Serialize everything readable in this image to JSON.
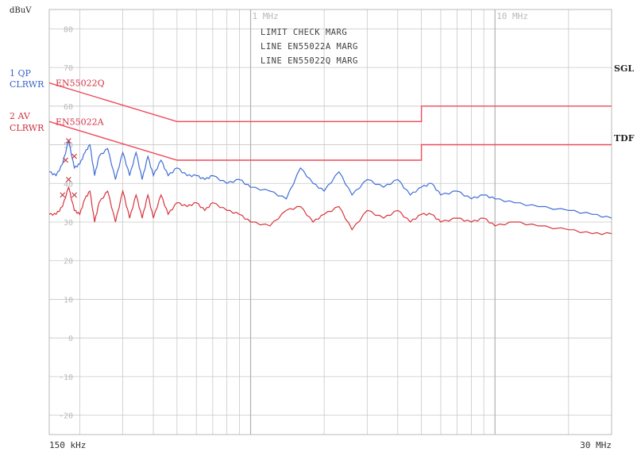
{
  "y_unit": "dBuV",
  "left_labels": {
    "trace1_name": "1 QP",
    "trace1_mode": "CLRWR",
    "trace2_name": "2 AV",
    "trace2_mode": "CLRWR"
  },
  "right_labels": {
    "sgl": "SGL",
    "tdf": "TDF"
  },
  "header_lines": [
    "LIMIT CHECK   MARG",
    "LINE EN55022A MARG",
    "LINE EN55022Q MARG"
  ],
  "colors": {
    "qp": "#3f6fd6",
    "av": "#d8343c",
    "limit": "#ee4a5a",
    "grid": "#c8c8c8",
    "text_blue": "#3a63c8",
    "text_red": "#d03040"
  },
  "chart_data": {
    "type": "line",
    "title": "",
    "xlabel": "",
    "ylabel": "dBuV",
    "xscale": "log",
    "xlim": [
      0.15,
      30
    ],
    "ylim": [
      -25,
      85
    ],
    "y_ticks": [
      80,
      70,
      60,
      50,
      40,
      30,
      20,
      10,
      0,
      -10,
      -20
    ],
    "x_labels": [
      {
        "text": "150 kHz",
        "pos": "bottom-left"
      },
      {
        "text": "1 MHz",
        "pos": "top"
      },
      {
        "text": "10 MHz",
        "pos": "top"
      },
      {
        "text": "30 MHz",
        "pos": "bottom-right"
      }
    ],
    "grid": true,
    "limit_lines": [
      {
        "name": "EN55022Q",
        "x": [
          0.15,
          0.5,
          0.5,
          5,
          5,
          30
        ],
        "y": [
          66,
          56,
          56,
          56,
          60,
          60
        ]
      },
      {
        "name": "EN55022A",
        "x": [
          0.15,
          0.5,
          0.5,
          5,
          5,
          30
        ],
        "y": [
          56,
          46,
          46,
          46,
          50,
          50
        ]
      }
    ],
    "series": [
      {
        "name": "1 QP",
        "x": [
          0.15,
          0.16,
          0.17,
          0.18,
          0.19,
          0.2,
          0.21,
          0.22,
          0.23,
          0.24,
          0.26,
          0.28,
          0.3,
          0.32,
          0.34,
          0.36,
          0.38,
          0.4,
          0.43,
          0.46,
          0.5,
          0.55,
          0.6,
          0.65,
          0.7,
          0.8,
          0.9,
          1.0,
          1.2,
          1.4,
          1.6,
          1.8,
          2.0,
          2.3,
          2.6,
          3.0,
          3.5,
          4.0,
          4.5,
          5.0,
          5.5,
          6.0,
          7.0,
          8.0,
          9.0,
          10,
          12,
          15,
          20,
          25,
          30
        ],
        "y": [
          43,
          42,
          45,
          51,
          44,
          45,
          48,
          50,
          42,
          47,
          49,
          41,
          48,
          42,
          48,
          41,
          47,
          42,
          46,
          42,
          44,
          42,
          42,
          41,
          42,
          40,
          41,
          39,
          38,
          36,
          44,
          40,
          38,
          43,
          37,
          41,
          39,
          41,
          37,
          39,
          40,
          37,
          38,
          36,
          37,
          36,
          35,
          34,
          33,
          32,
          31
        ]
      },
      {
        "name": "2 AV",
        "x": [
          0.15,
          0.16,
          0.17,
          0.18,
          0.19,
          0.2,
          0.21,
          0.22,
          0.23,
          0.24,
          0.26,
          0.28,
          0.3,
          0.32,
          0.34,
          0.36,
          0.38,
          0.4,
          0.43,
          0.46,
          0.5,
          0.55,
          0.6,
          0.65,
          0.7,
          0.8,
          0.9,
          1.0,
          1.2,
          1.4,
          1.6,
          1.8,
          2.0,
          2.3,
          2.6,
          3.0,
          3.5,
          4.0,
          4.5,
          5.0,
          5.5,
          6.0,
          7.0,
          8.0,
          9.0,
          10,
          12,
          15,
          20,
          25,
          30
        ],
        "y": [
          32,
          32,
          34,
          39,
          33,
          32,
          36,
          38,
          30,
          35,
          38,
          30,
          38,
          31,
          37,
          31,
          37,
          31,
          37,
          32,
          35,
          34,
          35,
          33,
          35,
          33,
          32,
          30,
          29,
          33,
          34,
          30,
          32,
          34,
          28,
          33,
          31,
          33,
          30,
          32,
          32,
          30,
          31,
          30,
          31,
          29,
          30,
          29,
          28,
          27,
          27
        ]
      }
    ]
  }
}
